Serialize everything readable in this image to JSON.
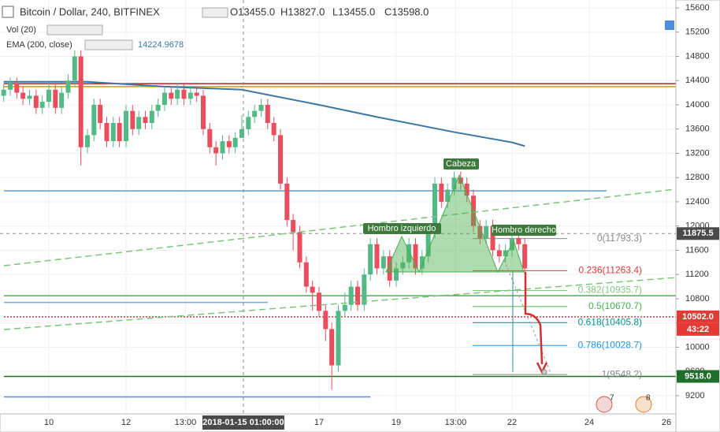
{
  "chart_data": {
    "type": "candlestick",
    "title": "Bitcoin / Dollar, 240, BITFINEX",
    "ohlc_header": [
      "O13455.0",
      "H13827.0",
      "L13455.0",
      "C13598.0"
    ],
    "volume_label": "Vol (20)",
    "ema": {
      "name": "EMA (200, close)",
      "value_label": "14224.9678",
      "color": "#3a78a6",
      "x": [
        8.83,
        11,
        13,
        15,
        17,
        18.5,
        20.5,
        22,
        22.33
      ],
      "values": [
        14380,
        14380,
        14300,
        14250,
        14000,
        13800,
        13550,
        13380,
        13320
      ]
    },
    "up_color": "#53b987",
    "down_color": "#eb4d5c",
    "x": [
      8.83,
      9,
      9.17,
      9.33,
      9.5,
      9.67,
      9.83,
      10,
      10.17,
      10.33,
      10.5,
      10.67,
      10.83,
      11,
      11.17,
      11.33,
      11.5,
      11.67,
      11.83,
      12,
      12.17,
      12.33,
      12.5,
      12.67,
      12.83,
      13,
      13.17,
      13.33,
      13.5,
      13.67,
      13.83,
      14,
      14.17,
      14.33,
      14.5,
      14.67,
      14.83,
      15,
      15.17,
      15.33,
      15.5,
      15.67,
      15.83,
      16,
      16.17,
      16.33,
      16.5,
      16.67,
      16.83,
      17,
      17.17,
      17.33,
      17.5,
      17.67,
      17.83,
      18,
      18.17,
      18.33,
      18.5,
      18.67,
      18.83,
      19,
      19.17,
      19.33,
      19.5,
      19.67,
      19.83,
      20,
      20.17,
      20.33,
      20.5,
      20.67,
      20.83,
      21,
      21.17,
      21.33,
      21.5,
      21.67,
      21.83,
      22,
      22.17,
      22.33
    ],
    "open": [
      14150,
      14250,
      14350,
      14200,
      14100,
      14150,
      13950,
      14050,
      14250,
      13950,
      14200,
      14400,
      14800,
      13300,
      13500,
      14000,
      13700,
      13400,
      13700,
      13400,
      13900,
      13600,
      13800,
      13700,
      13900,
      14000,
      14200,
      14100,
      14250,
      14100,
      14200,
      14150,
      13600,
      13300,
      13200,
      13400,
      13300,
      13455,
      13598,
      13800,
      13900,
      14000,
      13700,
      13500,
      12700,
      12100,
      11900,
      11400,
      11000,
      10900,
      10600,
      10300,
      9700,
      10600,
      10700,
      11000,
      10700,
      11200,
      11700,
      11300,
      11500,
      11100,
      11300,
      11400,
      11700,
      11300,
      11500,
      11900,
      12700,
      12400,
      12600,
      12800,
      12700,
      12500,
      12000,
      11800,
      12000,
      11600,
      11500,
      11600,
      11800,
      11700
    ],
    "high": [
      14350,
      14450,
      14450,
      14300,
      14250,
      14250,
      14150,
      14350,
      14350,
      14300,
      14500,
      14900,
      14900,
      13600,
      14100,
      14100,
      13800,
      13800,
      13800,
      14000,
      14000,
      13900,
      13900,
      14000,
      14100,
      14300,
      14300,
      14350,
      14350,
      14300,
      14300,
      14250,
      13700,
      13400,
      13500,
      13500,
      13550,
      13827,
      13900,
      14000,
      14100,
      14100,
      13800,
      13600,
      12800,
      12200,
      12000,
      11500,
      11100,
      11000,
      10700,
      10400,
      10700,
      10900,
      11100,
      11100,
      11300,
      11800,
      11800,
      11600,
      11600,
      11400,
      11500,
      11800,
      11800,
      11600,
      12000,
      12800,
      12800,
      12700,
      12900,
      12900,
      12800,
      12600,
      12100,
      12100,
      12100,
      11700,
      11700,
      11900,
      11900,
      11800
    ],
    "low": [
      14050,
      14150,
      14100,
      14000,
      14000,
      13850,
      13850,
      13950,
      13850,
      13850,
      14100,
      14300,
      13000,
      13200,
      13400,
      13600,
      13300,
      13300,
      13300,
      13300,
      13500,
      13500,
      13600,
      13600,
      13800,
      13900,
      14000,
      14000,
      14000,
      14000,
      14050,
      13500,
      13200,
      13000,
      13100,
      13200,
      13200,
      13455,
      13500,
      13700,
      13800,
      13600,
      13400,
      12600,
      12000,
      11600,
      11300,
      10900,
      10600,
      10500,
      10100,
      9300,
      9600,
      10500,
      10600,
      10600,
      10600,
      11100,
      11200,
      11200,
      11000,
      11000,
      11200,
      11300,
      11200,
      11200,
      11400,
      11800,
      12300,
      12300,
      12500,
      12600,
      12400,
      11900,
      11700,
      11700,
      11500,
      11400,
      11400,
      11500,
      11600,
      11200
    ],
    "close": [
      14250,
      14350,
      14200,
      14100,
      14150,
      13950,
      14050,
      14250,
      13950,
      14200,
      14400,
      14800,
      13300,
      13500,
      14000,
      13700,
      13400,
      13700,
      13400,
      13900,
      13600,
      13800,
      13700,
      13900,
      14000,
      14200,
      14100,
      14250,
      14100,
      14200,
      14150,
      13600,
      13300,
      13200,
      13400,
      13300,
      13455,
      13598,
      13800,
      13900,
      14000,
      13700,
      13500,
      12700,
      12100,
      11900,
      11400,
      11000,
      10900,
      10600,
      10300,
      9700,
      10600,
      10700,
      11000,
      10700,
      11200,
      11700,
      11300,
      11500,
      11100,
      11300,
      11400,
      11700,
      11300,
      11500,
      11900,
      12700,
      12400,
      12600,
      12800,
      12700,
      12500,
      12000,
      11800,
      12000,
      11600,
      11500,
      11600,
      11800,
      11700,
      11300
    ],
    "xlim": [
      8.735,
      26.245
    ],
    "ylim": [
      8900,
      15730
    ],
    "yticks": [
      9200,
      9600,
      10000,
      10400,
      10800,
      11200,
      11600,
      12000,
      12400,
      12800,
      13200,
      13600,
      14000,
      14400,
      14800,
      15200,
      15600
    ],
    "xticks": [
      10,
      12,
      {
        "value": 13.54,
        "label": "13:00"
      },
      17,
      19,
      {
        "value": 20.54,
        "label": "13:00"
      },
      22,
      24,
      26
    ],
    "hlines": [
      {
        "value": 14350,
        "color": "#b22222"
      },
      {
        "value": 14300,
        "color": "#c8a000"
      },
      {
        "value": 12580,
        "color": "#5b9bd5",
        "x_end": 24.45
      },
      {
        "value": 10740,
        "color": "#7aa7e0",
        "x_end": 15.67
      },
      {
        "value": 9180,
        "color": "#5b8ee0",
        "x_end": 18.33
      },
      {
        "value": 10850,
        "color": "#4caf50"
      },
      {
        "value": 9518,
        "color": "#1f6e2a"
      },
      {
        "value": 10502,
        "color": "#e53935",
        "dash": true
      }
    ],
    "fib_range": [
      20.98,
      23.43
    ],
    "fib_levels": [
      {
        "value": 11793.3,
        "label": "0(11793.3)",
        "color": "#888888"
      },
      {
        "value": 11263.4,
        "label": "0.236(11263.4)",
        "color": "#e53935"
      },
      {
        "value": 10935.7,
        "label": "0.382(10935.7)",
        "color": "#81c784"
      },
      {
        "value": 10670.7,
        "label": "0.5(10670.7)",
        "color": "#4caf50"
      },
      {
        "value": 10405.8,
        "label": "0.618(10405.8)",
        "color": "#009688"
      },
      {
        "value": 10028.7,
        "label": "0.786(10028.7)",
        "color": "#2196f3"
      },
      {
        "value": 9548.2,
        "label": "1(9548.2)",
        "color": "#888888"
      }
    ],
    "annotations": [
      "Cabeza",
      "Hombro izquierdo",
      "Hombro derecho"
    ],
    "crosshair": {
      "x": {
        "value": 15.04,
        "label": "2018-01-15 01:00:00"
      },
      "y": 11875.5
    },
    "price_tags": [
      {
        "value": 11875.5,
        "color": "#4a4a4a"
      },
      {
        "value": 10502.0,
        "label": "10502.0",
        "color": "#e53935",
        "countdown": "43:22"
      },
      {
        "value": 9518.0,
        "label": "9518.0",
        "color": "#1f6e2a"
      }
    ],
    "alerts": [
      "7",
      "8"
    ]
  }
}
